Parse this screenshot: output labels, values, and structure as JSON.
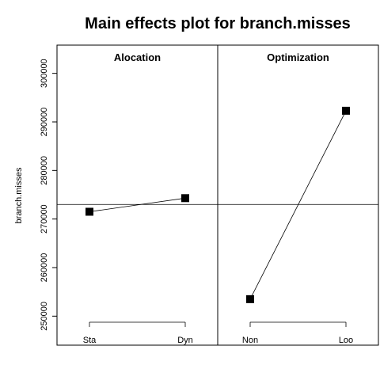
{
  "chart_data": {
    "type": "line",
    "title": "Main effects plot for branch.misses",
    "ylabel": "branch.misses",
    "xlabel": "",
    "ylim": [
      245000,
      305000
    ],
    "yticks": [
      250000,
      260000,
      270000,
      280000,
      290000,
      300000
    ],
    "grand_mean": 273000,
    "grid": false,
    "panels": [
      {
        "name": "Alocation",
        "categories": [
          "Sta",
          "Dyn"
        ],
        "values": [
          271500,
          274300
        ]
      },
      {
        "name": "Optimization",
        "categories": [
          "Non",
          "Loo"
        ],
        "values": [
          253500,
          292300
        ]
      }
    ]
  }
}
